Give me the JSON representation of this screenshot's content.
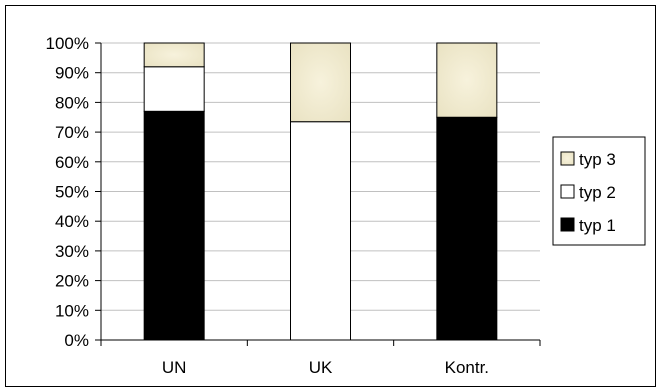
{
  "chart_data": {
    "type": "bar",
    "stacked": true,
    "percent": true,
    "categories": [
      "UN",
      "UK",
      "Kontr."
    ],
    "series": [
      {
        "name": "typ 1",
        "values": [
          77,
          0,
          75
        ],
        "color": "#000000"
      },
      {
        "name": "typ 2",
        "values": [
          15,
          73.5,
          0
        ],
        "color": "#ffffff"
      },
      {
        "name": "typ 3",
        "values": [
          8,
          26.5,
          25
        ],
        "color": "#f1ecd2"
      }
    ],
    "ylim": [
      0,
      100
    ],
    "yticks": [
      "0%",
      "10%",
      "20%",
      "30%",
      "40%",
      "50%",
      "60%",
      "70%",
      "80%",
      "90%",
      "100%"
    ],
    "grid": true,
    "legend": {
      "position": "right",
      "order": [
        "typ 3",
        "typ 2",
        "typ 1"
      ]
    },
    "title": "",
    "xlabel": "",
    "ylabel": ""
  }
}
